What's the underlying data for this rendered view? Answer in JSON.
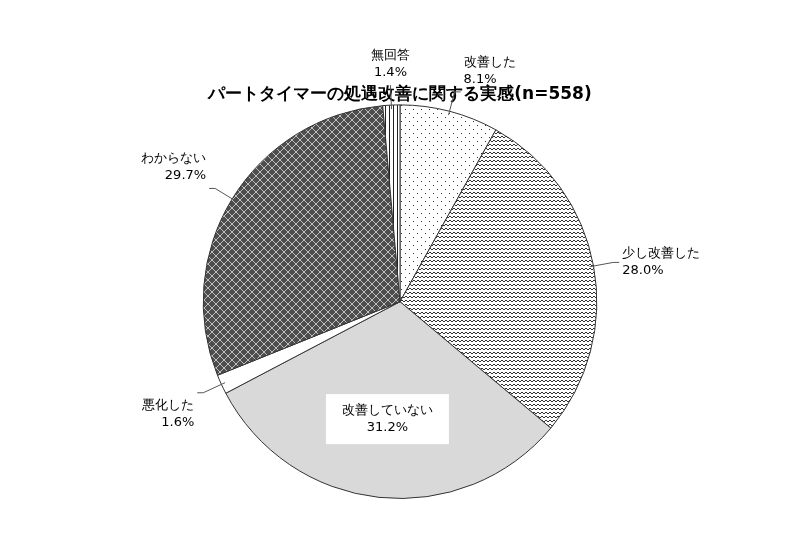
{
  "chart_data": {
    "type": "pie",
    "title": "パートタイマーの処遇改善に関する実感(n=558)",
    "categories": [
      "改善した",
      "少し改善した",
      "改善していない",
      "悪化した",
      "わからない",
      "無回答"
    ],
    "values": [
      8.1,
      28.0,
      31.2,
      1.6,
      29.7,
      1.4
    ],
    "value_labels": [
      "8.1%",
      "28.0%",
      "31.2%",
      "1.6%",
      "29.7%",
      "1.4%"
    ],
    "colors": [
      "#ffffff",
      "#ffffff",
      "#d9d9d9",
      "#ffffff",
      "#4d4d4d",
      "#ffffff"
    ],
    "data_labels": true
  }
}
